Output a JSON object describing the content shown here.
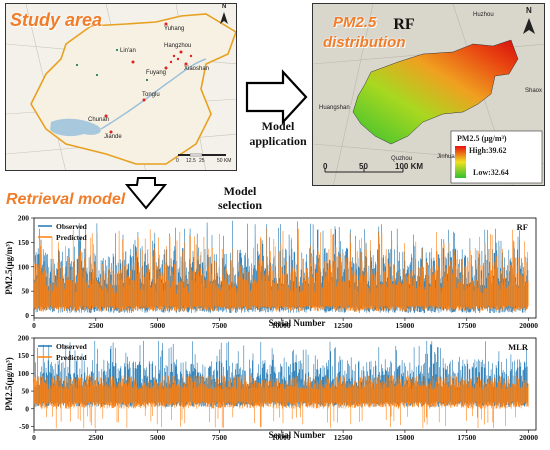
{
  "study_area": {
    "title": "Study area",
    "places": [
      "Yuhang",
      "Lin'an",
      "Hangzhou",
      "Xiaoshan",
      "Fuyang",
      "Tonglu",
      "Chunan",
      "Jiande"
    ],
    "north": "N",
    "scale_labels": [
      "0",
      "12.5",
      "25",
      "50 KM"
    ]
  },
  "pm_map": {
    "title_line1": "PM2.5",
    "title_line2": "distribution",
    "model": "RF",
    "north": "N",
    "places": [
      "Huzhou",
      "Huangshan",
      "Quzhou",
      "Jinhua",
      "Shaox"
    ],
    "scale_labels": [
      "0",
      "50",
      "100 KM"
    ],
    "legend_title": "PM2.5",
    "legend_unit": "(μg/m³)",
    "legend_high": "High:39.62",
    "legend_low": "Low:32.64"
  },
  "arrows": {
    "application_line1": "Model",
    "application_line2": "application",
    "selection_line1": "Model",
    "selection_line2": "selection"
  },
  "retrieval_title": "Retrieval model",
  "chart_data": [
    {
      "type": "line",
      "model_label": "RF",
      "legend": [
        "Observed",
        "Predicted"
      ],
      "colors": {
        "Observed": "#1f77b4",
        "Predicted": "#ff7f0e"
      },
      "xlabel": "Serial Number",
      "ylabel": "PM2.5(μg/m³)",
      "xlim": [
        0,
        20300
      ],
      "ylim": [
        -5,
        200
      ],
      "xticks": [
        0,
        2500,
        5000,
        7500,
        10000,
        12500,
        15000,
        17500,
        20000
      ],
      "yticks": [
        0,
        50,
        100,
        150,
        200
      ],
      "series_summary": {
        "points": 20000,
        "observed_range": [
          2,
          195
        ],
        "predicted_range": [
          5,
          180
        ]
      }
    },
    {
      "type": "line",
      "model_label": "MLR",
      "legend": [
        "Observed",
        "Predicted"
      ],
      "colors": {
        "Observed": "#1f77b4",
        "Predicted": "#ff7f0e"
      },
      "xlabel": "Serial Number",
      "ylabel": "PM2.5(μg/m³)",
      "xlim": [
        0,
        20300
      ],
      "ylim": [
        -60,
        200
      ],
      "xticks": [
        0,
        2500,
        5000,
        7500,
        10000,
        12500,
        15000,
        17500,
        20000
      ],
      "yticks": [
        -50,
        0,
        50,
        100,
        150,
        200
      ],
      "series_summary": {
        "points": 20000,
        "observed_range": [
          2,
          195
        ],
        "predicted_range": [
          -55,
          110
        ]
      }
    }
  ]
}
